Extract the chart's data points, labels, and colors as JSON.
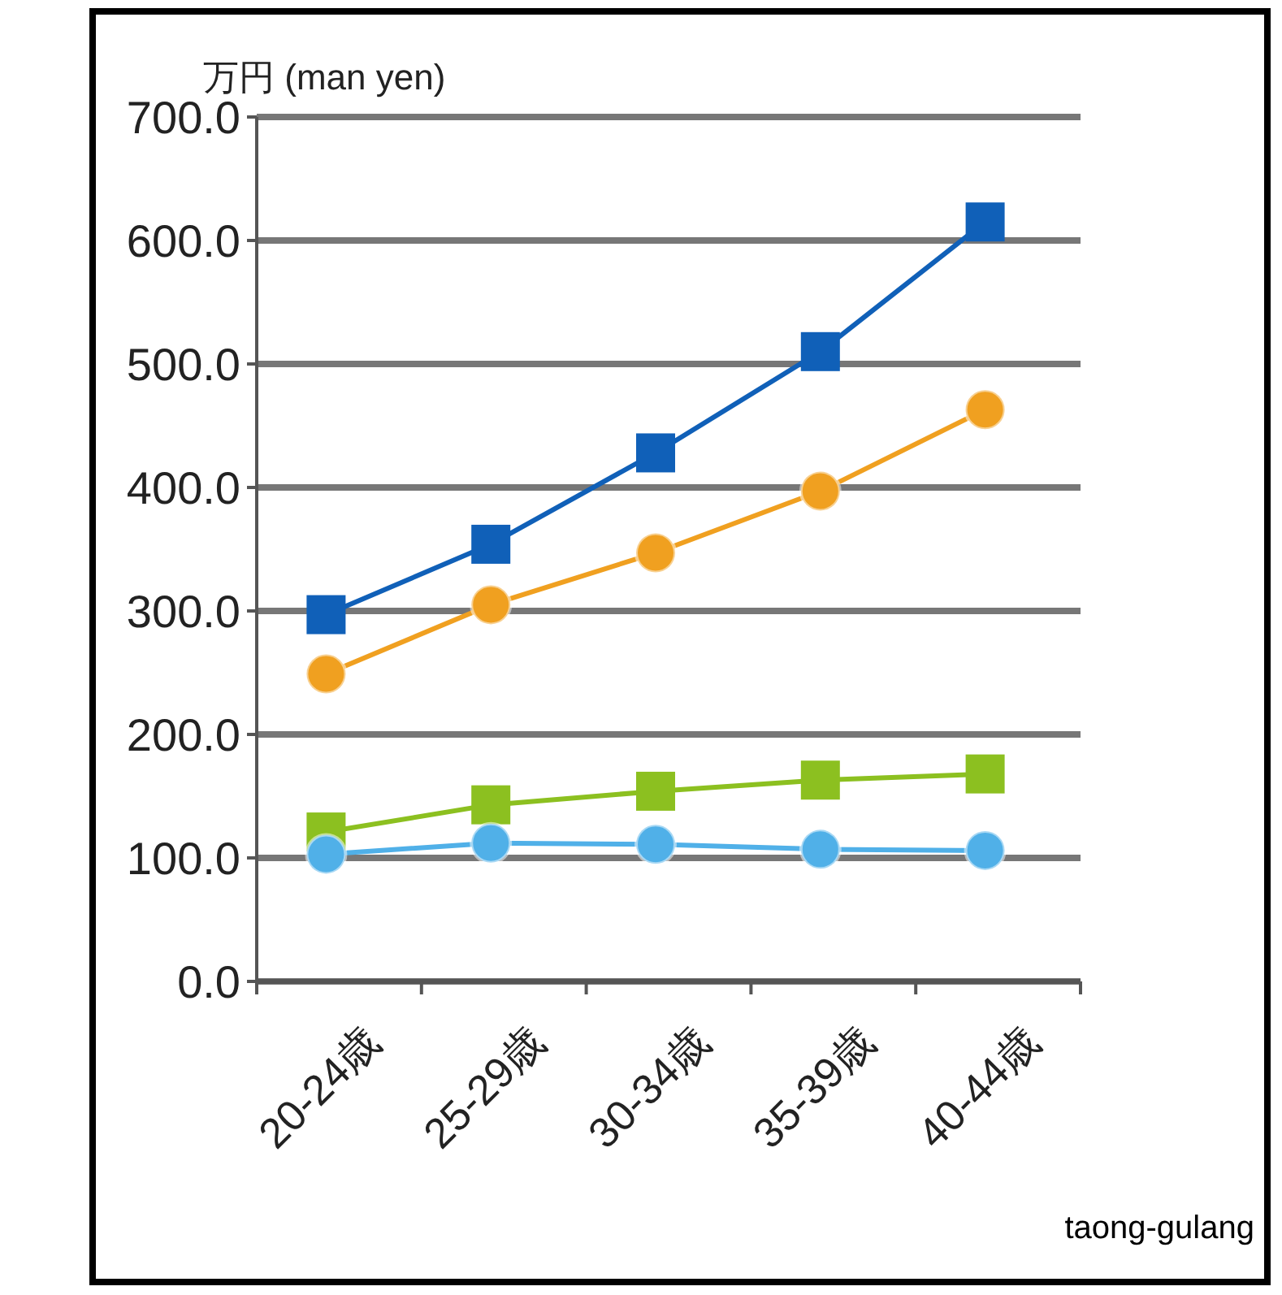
{
  "chart_data": {
    "type": "line",
    "ylabel": "万円 (man yen)",
    "xlabel": "taong-gulang",
    "categories": [
      "20-24歳",
      "25-29歳",
      "30-34歳",
      "35-39歳",
      "40-44歳"
    ],
    "series": [
      {
        "color": "#1060b8",
        "marker": "square",
        "values": [
          297,
          354,
          428,
          510,
          615
        ]
      },
      {
        "color": "#f0a020",
        "marker": "circle",
        "values": [
          249,
          305,
          347,
          397,
          463
        ]
      },
      {
        "color": "#8cc020",
        "marker": "square",
        "values": [
          121,
          143,
          154,
          163,
          168
        ]
      },
      {
        "color": "#50b0e8",
        "marker": "circle",
        "values": [
          103,
          112,
          111,
          107,
          106
        ]
      }
    ],
    "ylim": [
      0,
      700
    ],
    "yticks": [
      {
        "value": 0,
        "label": "0.0"
      },
      {
        "value": 100,
        "label": "100.0"
      },
      {
        "value": 200,
        "label": "200.0"
      },
      {
        "value": 300,
        "label": "300.0"
      },
      {
        "value": 400,
        "label": "400.0"
      },
      {
        "value": 500,
        "label": "500.0"
      },
      {
        "value": 600,
        "label": "600.0"
      },
      {
        "value": 700,
        "label": "700.0"
      }
    ],
    "grid": "y",
    "line_style": "solid"
  }
}
